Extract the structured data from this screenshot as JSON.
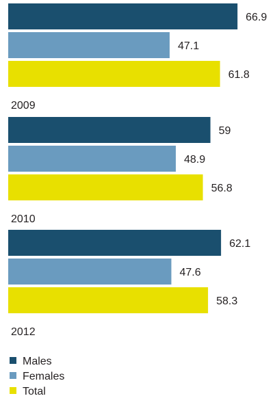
{
  "chart_data": {
    "type": "bar",
    "orientation": "horizontal",
    "categories": [
      "2009",
      "2010",
      "2012"
    ],
    "series": [
      {
        "name": "Males",
        "values": [
          66.9,
          59,
          62.1
        ],
        "color": "#1a4f6e"
      },
      {
        "name": "Females",
        "values": [
          47.1,
          48.9,
          47.6
        ],
        "color": "#6a9bbf"
      },
      {
        "name": "Total",
        "values": [
          61.8,
          56.8,
          58.3
        ],
        "color": "#e8e000"
      }
    ],
    "value_labels": [
      [
        "66.9",
        "59",
        "62.1"
      ],
      [
        "47.1",
        "48.9",
        "47.6"
      ],
      [
        "61.8",
        "56.8",
        "58.3"
      ]
    ],
    "title": "",
    "xlabel": "",
    "ylabel": "",
    "legend_position": "bottom-left",
    "grid": false
  }
}
